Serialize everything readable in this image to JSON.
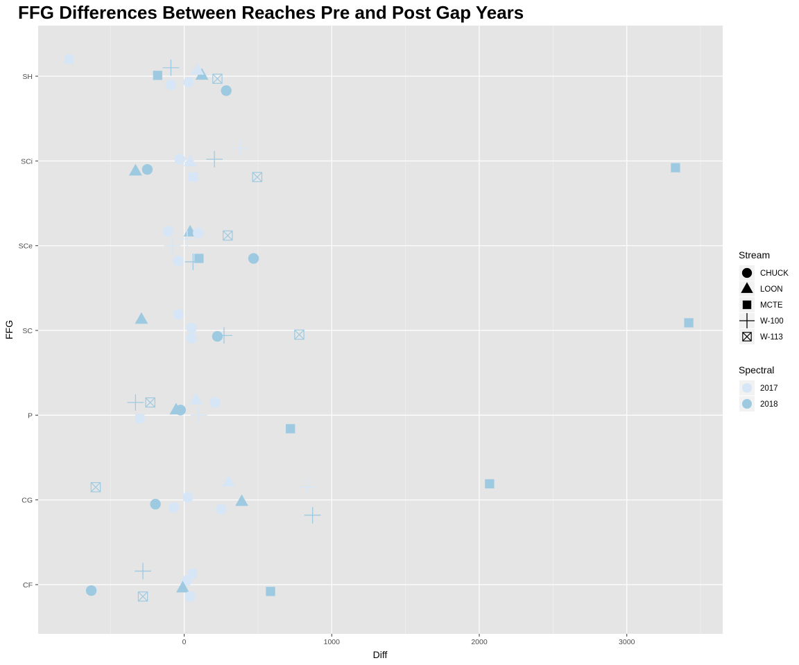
{
  "chart_data": {
    "type": "scatter",
    "title": "FFG Differences Between Reaches Pre and Post Gap Years",
    "xlabel": "Diff",
    "ylabel": "FFG",
    "xlim": [
      -990,
      3650
    ],
    "x_ticks": [
      0,
      1000,
      2000,
      3000
    ],
    "categories": [
      "CF",
      "CG",
      "P",
      "SC",
      "SCe",
      "SCi",
      "SH"
    ],
    "grid": true,
    "colors": {
      "2017": "#d6e6f6",
      "2018": "#9ecae1"
    },
    "legend": {
      "position": "right",
      "stream_title": "Stream",
      "stream_items": [
        {
          "label": "CHUCK",
          "shape": "circle"
        },
        {
          "label": "LOON",
          "shape": "triangle"
        },
        {
          "label": "MCTE",
          "shape": "square"
        },
        {
          "label": "W-100",
          "shape": "plus"
        },
        {
          "label": "W-113",
          "shape": "boxx"
        }
      ],
      "spectral_title": "Spectral",
      "spectral_items": [
        {
          "label": "2017",
          "color": "#d6e6f6"
        },
        {
          "label": "2018",
          "color": "#9ecae1"
        }
      ]
    },
    "points": [
      {
        "ffg": "SH",
        "jitter": 0.2,
        "x": -780,
        "shape": "square",
        "year": "2017"
      },
      {
        "ffg": "SH",
        "jitter": 0.1,
        "x": -90,
        "shape": "plus",
        "year": "2018"
      },
      {
        "ffg": "SH",
        "jitter": 0.01,
        "x": -180,
        "shape": "square",
        "year": "2018"
      },
      {
        "ffg": "SH",
        "jitter": 0.01,
        "x": 120,
        "shape": "triangle",
        "year": "2018"
      },
      {
        "ffg": "SH",
        "jitter": -0.03,
        "x": 225,
        "shape": "boxx",
        "year": "2018"
      },
      {
        "ffg": "SH",
        "jitter": -0.07,
        "x": 30,
        "shape": "circle",
        "year": "2017"
      },
      {
        "ffg": "SH",
        "jitter": -0.1,
        "x": -90,
        "shape": "circle",
        "year": "2017"
      },
      {
        "ffg": "SH",
        "jitter": -0.17,
        "x": 285,
        "shape": "circle",
        "year": "2018"
      },
      {
        "ffg": "SH",
        "jitter": 0.07,
        "x": 90,
        "shape": "triangle",
        "year": "2017"
      },
      {
        "ffg": "SCi",
        "jitter": 0.15,
        "x": 380,
        "shape": "plus",
        "year": "2017"
      },
      {
        "ffg": "SCi",
        "jitter": 0.02,
        "x": 205,
        "shape": "plus",
        "year": "2018"
      },
      {
        "ffg": "SCi",
        "jitter": 0.02,
        "x": -30,
        "shape": "circle",
        "year": "2017"
      },
      {
        "ffg": "SCi",
        "jitter": -0.01,
        "x": 40,
        "shape": "triangle",
        "year": "2017"
      },
      {
        "ffg": "SCi",
        "jitter": -0.08,
        "x": 3330,
        "shape": "square",
        "year": "2018"
      },
      {
        "ffg": "SCi",
        "jitter": -0.1,
        "x": -250,
        "shape": "circle",
        "year": "2018"
      },
      {
        "ffg": "SCi",
        "jitter": -0.12,
        "x": -330,
        "shape": "triangle",
        "year": "2018"
      },
      {
        "ffg": "SCi",
        "jitter": -0.19,
        "x": 60,
        "shape": "square",
        "year": "2017"
      },
      {
        "ffg": "SCi",
        "jitter": -0.19,
        "x": 495,
        "shape": "boxx",
        "year": "2018"
      },
      {
        "ffg": "SCe",
        "jitter": 0.17,
        "x": -110,
        "shape": "circle",
        "year": "2017"
      },
      {
        "ffg": "SCe",
        "jitter": 0.16,
        "x": 40,
        "shape": "triangle",
        "year": "2018"
      },
      {
        "ffg": "SCe",
        "jitter": 0.15,
        "x": 95,
        "shape": "circle",
        "year": "2017"
      },
      {
        "ffg": "SCe",
        "jitter": 0.12,
        "x": 295,
        "shape": "boxx",
        "year": "2018"
      },
      {
        "ffg": "SCe",
        "jitter": 0.08,
        "x": 20,
        "shape": "plus",
        "year": "2017"
      },
      {
        "ffg": "SCe",
        "jitter": 0.0,
        "x": -80,
        "shape": "plus",
        "year": "2017"
      },
      {
        "ffg": "SCe",
        "jitter": -0.15,
        "x": 100,
        "shape": "square",
        "year": "2018"
      },
      {
        "ffg": "SCe",
        "jitter": -0.15,
        "x": 470,
        "shape": "circle",
        "year": "2018"
      },
      {
        "ffg": "SCe",
        "jitter": -0.19,
        "x": 60,
        "shape": "plus",
        "year": "2018"
      },
      {
        "ffg": "SCe",
        "jitter": -0.18,
        "x": -40,
        "shape": "circle",
        "year": "2017"
      },
      {
        "ffg": "SC",
        "jitter": 0.19,
        "x": -40,
        "shape": "circle",
        "year": "2017"
      },
      {
        "ffg": "SC",
        "jitter": 0.13,
        "x": -290,
        "shape": "triangle",
        "year": "2018"
      },
      {
        "ffg": "SC",
        "jitter": 0.09,
        "x": 3420,
        "shape": "square",
        "year": "2018"
      },
      {
        "ffg": "SC",
        "jitter": 0.03,
        "x": 50,
        "shape": "circle",
        "year": "2017"
      },
      {
        "ffg": "SC",
        "jitter": -0.05,
        "x": 780,
        "shape": "boxx",
        "year": "2018"
      },
      {
        "ffg": "SC",
        "jitter": -0.06,
        "x": 270,
        "shape": "plus",
        "year": "2018"
      },
      {
        "ffg": "SC",
        "jitter": -0.07,
        "x": 225,
        "shape": "circle",
        "year": "2018"
      },
      {
        "ffg": "SC",
        "jitter": -0.09,
        "x": 50,
        "shape": "circle",
        "year": "2017"
      },
      {
        "ffg": "P",
        "jitter": 0.18,
        "x": 80,
        "shape": "triangle",
        "year": "2017"
      },
      {
        "ffg": "P",
        "jitter": 0.15,
        "x": -330,
        "shape": "plus",
        "year": "2018"
      },
      {
        "ffg": "P",
        "jitter": 0.15,
        "x": -230,
        "shape": "boxx",
        "year": "2018"
      },
      {
        "ffg": "P",
        "jitter": 0.15,
        "x": 210,
        "shape": "circle",
        "year": "2017"
      },
      {
        "ffg": "P",
        "jitter": 0.06,
        "x": -55,
        "shape": "triangle",
        "year": "2018"
      },
      {
        "ffg": "P",
        "jitter": 0.06,
        "x": -25,
        "shape": "circle",
        "year": "2018"
      },
      {
        "ffg": "P",
        "jitter": 0.0,
        "x": 100,
        "shape": "plus",
        "year": "2017"
      },
      {
        "ffg": "P",
        "jitter": -0.04,
        "x": -300,
        "shape": "square",
        "year": "2017"
      },
      {
        "ffg": "P",
        "jitter": -0.16,
        "x": 720,
        "shape": "square",
        "year": "2018"
      },
      {
        "ffg": "CG",
        "jitter": 0.21,
        "x": 300,
        "shape": "triangle",
        "year": "2017"
      },
      {
        "ffg": "CG",
        "jitter": 0.19,
        "x": 2070,
        "shape": "square",
        "year": "2018"
      },
      {
        "ffg": "CG",
        "jitter": 0.15,
        "x": -600,
        "shape": "boxx",
        "year": "2018"
      },
      {
        "ffg": "CG",
        "jitter": 0.15,
        "x": 830,
        "shape": "plus",
        "year": "2017"
      },
      {
        "ffg": "CG",
        "jitter": 0.03,
        "x": 25,
        "shape": "circle",
        "year": "2017"
      },
      {
        "ffg": "CG",
        "jitter": -0.02,
        "x": 390,
        "shape": "triangle",
        "year": "2018"
      },
      {
        "ffg": "CG",
        "jitter": -0.05,
        "x": -195,
        "shape": "circle",
        "year": "2018"
      },
      {
        "ffg": "CG",
        "jitter": -0.09,
        "x": -70,
        "shape": "circle",
        "year": "2017"
      },
      {
        "ffg": "CG",
        "jitter": -0.11,
        "x": 250,
        "shape": "circle",
        "year": "2017"
      },
      {
        "ffg": "CG",
        "jitter": -0.18,
        "x": 870,
        "shape": "plus",
        "year": "2018"
      },
      {
        "ffg": "CF",
        "jitter": 0.16,
        "x": -280,
        "shape": "plus",
        "year": "2018"
      },
      {
        "ffg": "CF",
        "jitter": 0.13,
        "x": 55,
        "shape": "square",
        "year": "2017"
      },
      {
        "ffg": "CF",
        "jitter": 0.05,
        "x": 20,
        "shape": "circle",
        "year": "2017"
      },
      {
        "ffg": "CF",
        "jitter": -0.04,
        "x": -10,
        "shape": "triangle",
        "year": "2018"
      },
      {
        "ffg": "CF",
        "jitter": -0.07,
        "x": -630,
        "shape": "circle",
        "year": "2018"
      },
      {
        "ffg": "CF",
        "jitter": -0.08,
        "x": 585,
        "shape": "square",
        "year": "2018"
      },
      {
        "ffg": "CF",
        "jitter": -0.14,
        "x": -280,
        "shape": "boxx",
        "year": "2018"
      },
      {
        "ffg": "CF",
        "jitter": -0.14,
        "x": 40,
        "shape": "circle",
        "year": "2017"
      }
    ]
  }
}
